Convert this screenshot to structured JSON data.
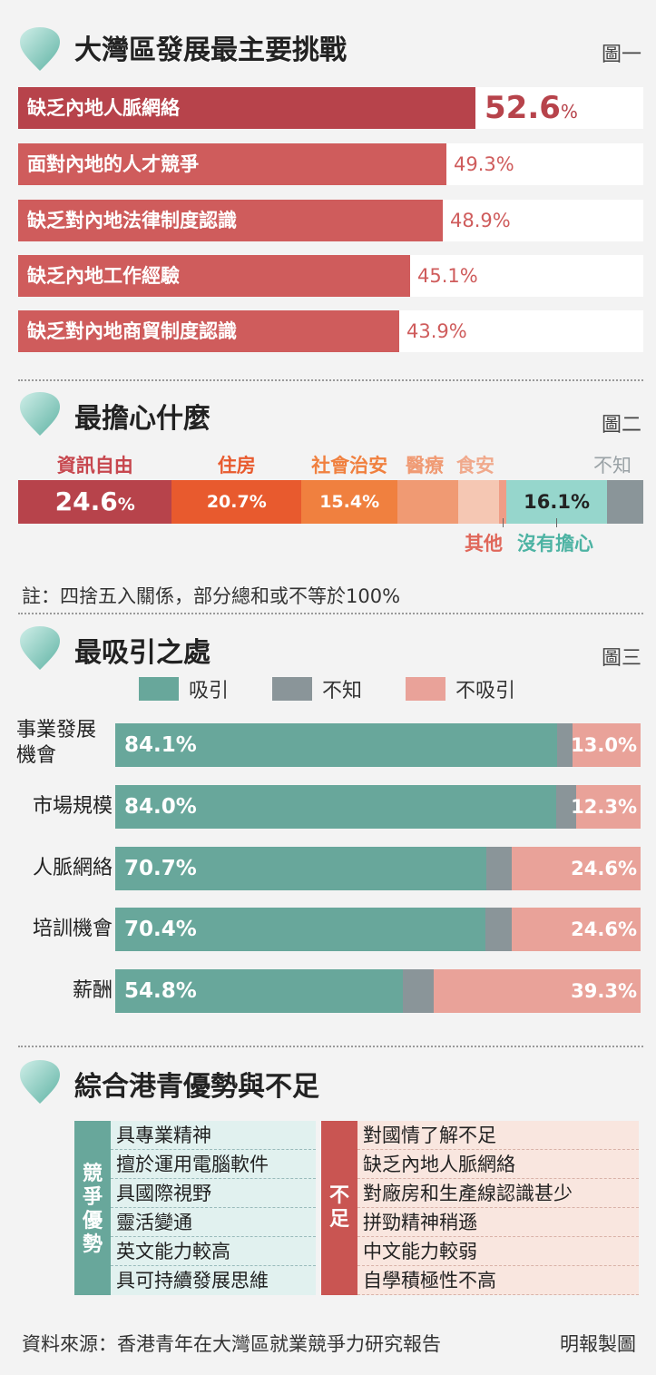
{
  "chart_data": [
    {
      "type": "bar",
      "title": "大灣區發展最主要挑戰",
      "figure_label": "圖一",
      "categories": [
        "缺乏內地人脈網絡",
        "面對內地的人才競爭",
        "缺乏對內地法律制度認識",
        "缺乏內地工作經驗",
        "缺乏對內地商貿制度認識"
      ],
      "values": [
        52.6,
        49.3,
        48.9,
        45.1,
        43.9
      ],
      "value_labels": [
        "52.6",
        "49.3",
        "48.9",
        "45.1",
        "43.9"
      ],
      "unit": "%",
      "xlim": [
        0,
        100
      ]
    },
    {
      "type": "bar",
      "stacked": true,
      "title": "最擔心什麼",
      "figure_label": "圖二",
      "categories": [
        "資訊自由",
        "住房",
        "社會治安",
        "醫療",
        "食安",
        "其他",
        "沒有擔心",
        "不知"
      ],
      "values": [
        24.6,
        20.7,
        15.4,
        9.7,
        6.5,
        1.2,
        16.1,
        5.8
      ],
      "value_labels": [
        "24.6",
        "20.7%",
        "15.4%",
        "",
        "",
        "",
        "16.1%",
        ""
      ],
      "unit": "%",
      "colors": [
        "#b7434b",
        "#e85a2e",
        "#f0803f",
        "#f09a73",
        "#f5c7b3",
        "#ef9d86",
        "#96d6cc",
        "#8a9599"
      ]
    },
    {
      "type": "bar",
      "stacked": true,
      "orientation": "horizontal",
      "title": "最吸引之處",
      "figure_label": "圖三",
      "legend": [
        "吸引",
        "不知",
        "不吸引"
      ],
      "legend_position": "top",
      "categories": [
        "事業發展機會",
        "市場規模",
        "人脈網絡",
        "培訓機會",
        "薪酬"
      ],
      "series": [
        {
          "name": "吸引",
          "values": [
            84.1,
            84.0,
            70.7,
            70.4,
            54.8
          ]
        },
        {
          "name": "不知",
          "values": [
            2.9,
            3.7,
            4.7,
            5.0,
            5.9
          ]
        },
        {
          "name": "不吸引",
          "values": [
            13.0,
            12.3,
            24.6,
            24.6,
            39.3
          ]
        }
      ],
      "colors": [
        "#68a79b",
        "#8a9599",
        "#e9a299"
      ]
    }
  ],
  "figure2": {
    "pct": "%",
    "callout_other": "其他",
    "callout_none": "沒有擔心"
  },
  "note": "註：四捨五入關係，部分總和或不等於100%",
  "table": {
    "title": "綜合港青優勢與不足",
    "advantages": {
      "label": [
        "競",
        "爭",
        "優",
        "勢"
      ],
      "items": [
        "具專業精神",
        "擅於運用電腦軟件",
        "具國際視野",
        "靈活變通",
        "英文能力較高",
        "具可持續發展思維"
      ]
    },
    "weaknesses": {
      "label": [
        "不",
        "足"
      ],
      "items": [
        "對國情了解不足",
        "缺乏內地人脈網絡",
        "對廠房和生產線認識甚少",
        "拼勁精神稍遜",
        "中文能力較弱",
        "自學積極性不高"
      ]
    }
  },
  "footer": {
    "source": "資料來源：香港青年在大灣區就業競爭力研究報告",
    "credit": "明報製圖"
  },
  "colors": {
    "red_main": "#b7434b",
    "red_bar": "#cf5c5c",
    "teal": "#68a79b",
    "adv_bg": "#e1f1ef",
    "weak_bg": "#f9e6df"
  }
}
